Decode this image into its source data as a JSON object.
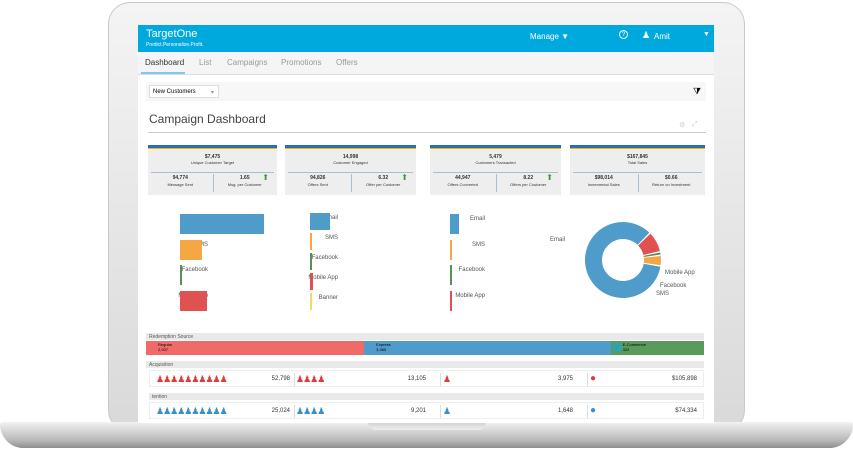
{
  "app": {
    "title": "TargetOne",
    "tagline": "Predict.Personalize.Profit.",
    "manage": "Manage ▼",
    "help_icon": "?",
    "user": "Amit",
    "user_menu": "▼"
  },
  "nav": {
    "tabs": [
      "Dashboard",
      "List",
      "Campaigns",
      "Promotions",
      "Offers"
    ],
    "active": "Dashboard"
  },
  "filter": {
    "segment": "New Customers"
  },
  "page_title": "Campaign Dashboard",
  "kpis": [
    {
      "value": "$7,475",
      "label": "Unique Customer Target",
      "left_value": "94,774",
      "left_label": "Message Sent",
      "right_value": "1.65",
      "right_label": "Msg. per Customer",
      "trend": "up"
    },
    {
      "value": "14,998",
      "label": "Customer Engaged",
      "left_value": "94,826",
      "left_label": "Offers Sent",
      "right_value": "6.32",
      "right_label": "Offer per Customer",
      "trend": "up"
    },
    {
      "value": "5,479",
      "label": "Customers Transacted",
      "left_value": "44,947",
      "left_label": "Offers Converted",
      "right_value": "8.22",
      "right_label": "Offers per Customer",
      "trend": "up"
    },
    {
      "value": "$167,845",
      "label": "Total Sales",
      "left_value": "$98,014",
      "left_label": "Incremental Sales",
      "right_value": "$0.66",
      "right_label": "Return on Investment",
      "trend": ""
    }
  ],
  "chart_data": [
    {
      "type": "bar",
      "orientation": "horizontal",
      "categories": [
        "Email",
        "SMS",
        "Facebook",
        "Mobile App"
      ],
      "values": [
        84,
        22,
        2,
        27
      ],
      "colors": [
        "#4f9bc9",
        "#f4a742",
        "#5a8f5a",
        "#e05252"
      ]
    },
    {
      "type": "bar",
      "orientation": "horizontal",
      "categories": [
        "Email",
        "SMS",
        "Facebook",
        "Mobile App",
        "Banner"
      ],
      "values": [
        20,
        0.5,
        0.5,
        3,
        0.5
      ],
      "colors": [
        "#4f9bc9",
        "#f4a742",
        "#5a8f5a",
        "#e05252",
        "#f7d66b"
      ]
    },
    {
      "type": "bar",
      "orientation": "horizontal",
      "categories": [
        "Email",
        "SMS",
        "Facebook",
        "Mobile App"
      ],
      "values": [
        9,
        0.5,
        0.5,
        1
      ],
      "colors": [
        "#4f9bc9",
        "#f4a742",
        "#5a8f5a",
        "#e05252"
      ]
    },
    {
      "type": "pie",
      "donut": true,
      "categories": [
        "Email",
        "Mobile App",
        "Facebook",
        "SMS"
      ],
      "values": [
        85,
        9,
        1.5,
        4.5
      ],
      "colors": [
        "#4f9bc9",
        "#e05252",
        "#5a8f5a",
        "#f4a742"
      ]
    }
  ],
  "redemption": {
    "title": "Redemption Source",
    "segments": [
      {
        "label": "Regular",
        "value": "2,937",
        "color": "#f06a6a"
      },
      {
        "label": "Express",
        "value": "3,365",
        "color": "#4f9bc9"
      },
      {
        "label": "E-Commerce",
        "value": "322",
        "color": "#5a9a5a"
      }
    ]
  },
  "acquisition": {
    "title": "Acquisition",
    "values": [
      "52,798",
      "13,105",
      "3,975",
      "$105,898"
    ],
    "color": "#e03c3c"
  },
  "retention": {
    "title": "tention",
    "values": [
      "25,024",
      "9,201",
      "1,648",
      "$74,334"
    ],
    "color": "#3a8fc9"
  }
}
